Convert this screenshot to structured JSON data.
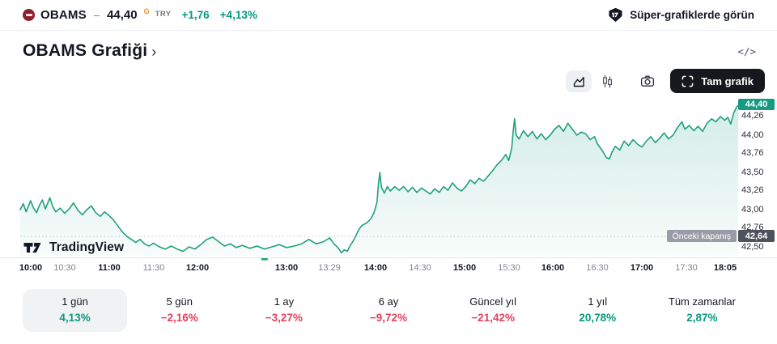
{
  "header": {
    "symbol": "OBAMS",
    "separator": "–",
    "price": "44,40",
    "market_flag": "G",
    "currency": "TRY",
    "change_abs": "+1,76",
    "change_pct": "+4,13%",
    "cta": "Süper-grafiklerde görün"
  },
  "title": {
    "text": "OBAMS Grafiği",
    "chevron": "›"
  },
  "icons": {
    "embed": "</>"
  },
  "toolbar": {
    "fullscreen_label": "Tam grafik"
  },
  "attribution": {
    "brand": "TradingView"
  },
  "colors": {
    "up": "#089981",
    "down": "#e5415d",
    "line": "#1fa07e",
    "fill_top": "rgba(31,160,126,0.20)",
    "fill_bottom": "rgba(31,160,126,0.03)",
    "last_badge_bg": "#179b80",
    "accent_orange": "#f28c1e"
  },
  "chart_data": {
    "type": "area",
    "title": "OBAMS Grafiği",
    "xlabel": "",
    "ylabel": "TRY",
    "x_range": [
      "10:00",
      "18:05"
    ],
    "ylim": [
      42.38,
      44.5
    ],
    "grid": false,
    "y_ticks": [
      "44,26",
      "44,00",
      "43,76",
      "43,50",
      "43,26",
      "43,00",
      "42,76",
      "42,50"
    ],
    "x_ticks": [
      {
        "label": "10:00",
        "strong": true
      },
      {
        "label": "10:30",
        "strong": false
      },
      {
        "label": "11:00",
        "strong": true
      },
      {
        "label": "11:30",
        "strong": false
      },
      {
        "label": "12:00",
        "strong": true
      },
      {
        "label": "13:00",
        "strong": true
      },
      {
        "label": "13:29",
        "strong": false
      },
      {
        "label": "14:00",
        "strong": true
      },
      {
        "label": "14:30",
        "strong": false
      },
      {
        "label": "15:00",
        "strong": true
      },
      {
        "label": "15:30",
        "strong": false
      },
      {
        "label": "16:00",
        "strong": true
      },
      {
        "label": "16:30",
        "strong": false
      },
      {
        "label": "17:00",
        "strong": true
      },
      {
        "label": "17:30",
        "strong": false
      },
      {
        "label": "18:05",
        "strong": true
      }
    ],
    "last_price": {
      "label": "44,40",
      "value": 44.4
    },
    "prev_close": {
      "label": "Önceki kapanış",
      "value_label": "42,64",
      "value": 42.64
    },
    "session_break": "12:45",
    "series": [
      {
        "name": "OBAMS",
        "points": [
          [
            "10:00",
            43.0
          ],
          [
            "10:02",
            43.08
          ],
          [
            "10:04",
            42.97
          ],
          [
            "10:07",
            43.12
          ],
          [
            "10:09",
            43.02
          ],
          [
            "10:11",
            42.96
          ],
          [
            "10:13",
            43.06
          ],
          [
            "10:15",
            43.13
          ],
          [
            "10:17",
            43.01
          ],
          [
            "10:20",
            43.16
          ],
          [
            "10:22",
            43.04
          ],
          [
            "10:24",
            42.97
          ],
          [
            "10:27",
            43.02
          ],
          [
            "10:30",
            42.95
          ],
          [
            "10:33",
            43.01
          ],
          [
            "10:36",
            43.09
          ],
          [
            "10:39",
            42.99
          ],
          [
            "10:42",
            42.93
          ],
          [
            "10:45",
            43.0
          ],
          [
            "10:48",
            43.05
          ],
          [
            "10:51",
            42.96
          ],
          [
            "10:54",
            42.91
          ],
          [
            "10:57",
            42.97
          ],
          [
            "11:00",
            42.92
          ],
          [
            "11:03",
            42.86
          ],
          [
            "11:06",
            42.78
          ],
          [
            "11:09",
            42.7
          ],
          [
            "11:12",
            42.64
          ],
          [
            "11:15",
            42.6
          ],
          [
            "11:18",
            42.56
          ],
          [
            "11:21",
            42.6
          ],
          [
            "11:24",
            42.54
          ],
          [
            "11:27",
            42.51
          ],
          [
            "11:30",
            42.55
          ],
          [
            "11:34",
            42.5
          ],
          [
            "11:38",
            42.47
          ],
          [
            "11:42",
            42.51
          ],
          [
            "11:46",
            42.47
          ],
          [
            "11:50",
            42.44
          ],
          [
            "11:54",
            42.5
          ],
          [
            "11:58",
            42.47
          ],
          [
            "12:02",
            42.53
          ],
          [
            "12:06",
            42.6
          ],
          [
            "12:10",
            42.63
          ],
          [
            "12:14",
            42.57
          ],
          [
            "12:18",
            42.51
          ],
          [
            "12:22",
            42.54
          ],
          [
            "12:26",
            42.49
          ],
          [
            "12:30",
            42.52
          ],
          [
            "12:35",
            42.48
          ],
          [
            "12:40",
            42.51
          ],
          [
            "12:45",
            42.47
          ],
          [
            "12:50",
            42.5
          ],
          [
            "12:55",
            42.53
          ],
          [
            "13:00",
            42.49
          ],
          [
            "13:05",
            42.51
          ],
          [
            "13:10",
            42.54
          ],
          [
            "13:15",
            42.6
          ],
          [
            "13:20",
            42.54
          ],
          [
            "13:25",
            42.57
          ],
          [
            "13:29",
            42.62
          ],
          [
            "13:32",
            42.54
          ],
          [
            "13:35",
            42.48
          ],
          [
            "13:37",
            42.42
          ],
          [
            "13:39",
            42.46
          ],
          [
            "13:41",
            42.44
          ],
          [
            "13:43",
            42.52
          ],
          [
            "13:45",
            42.58
          ],
          [
            "13:47",
            42.66
          ],
          [
            "13:49",
            42.74
          ],
          [
            "13:51",
            42.79
          ],
          [
            "13:54",
            42.82
          ],
          [
            "13:57",
            42.88
          ],
          [
            "13:59",
            42.96
          ],
          [
            "14:01",
            43.1
          ],
          [
            "14:02",
            43.35
          ],
          [
            "14:03",
            43.5
          ],
          [
            "14:04",
            43.3
          ],
          [
            "14:06",
            43.22
          ],
          [
            "14:08",
            43.31
          ],
          [
            "14:10",
            43.25
          ],
          [
            "14:13",
            43.31
          ],
          [
            "14:16",
            43.26
          ],
          [
            "14:19",
            43.31
          ],
          [
            "14:22",
            43.24
          ],
          [
            "14:25",
            43.3
          ],
          [
            "14:28",
            43.23
          ],
          [
            "14:31",
            43.29
          ],
          [
            "14:34",
            43.25
          ],
          [
            "14:37",
            43.21
          ],
          [
            "14:40",
            43.28
          ],
          [
            "14:43",
            43.23
          ],
          [
            "14:46",
            43.31
          ],
          [
            "14:49",
            43.26
          ],
          [
            "14:52",
            43.36
          ],
          [
            "14:55",
            43.29
          ],
          [
            "14:58",
            43.25
          ],
          [
            "15:01",
            43.31
          ],
          [
            "15:04",
            43.4
          ],
          [
            "15:07",
            43.35
          ],
          [
            "15:10",
            43.42
          ],
          [
            "15:13",
            43.38
          ],
          [
            "15:16",
            43.45
          ],
          [
            "15:19",
            43.52
          ],
          [
            "15:22",
            43.6
          ],
          [
            "15:25",
            43.66
          ],
          [
            "15:28",
            43.74
          ],
          [
            "15:30",
            43.66
          ],
          [
            "15:32",
            43.82
          ],
          [
            "15:33",
            44.05
          ],
          [
            "15:34",
            44.22
          ],
          [
            "15:35",
            44.0
          ],
          [
            "15:37",
            43.95
          ],
          [
            "15:40",
            44.06
          ],
          [
            "15:43",
            43.98
          ],
          [
            "15:46",
            44.05
          ],
          [
            "15:49",
            43.95
          ],
          [
            "15:52",
            44.02
          ],
          [
            "15:55",
            43.94
          ],
          [
            "15:58",
            44.0
          ],
          [
            "16:01",
            44.08
          ],
          [
            "16:04",
            44.13
          ],
          [
            "16:07",
            44.05
          ],
          [
            "16:10",
            44.16
          ],
          [
            "16:13",
            44.08
          ],
          [
            "16:16",
            44.0
          ],
          [
            "16:19",
            44.04
          ],
          [
            "16:22",
            44.02
          ],
          [
            "16:25",
            43.94
          ],
          [
            "16:28",
            43.98
          ],
          [
            "16:30",
            43.88
          ],
          [
            "16:33",
            43.8
          ],
          [
            "16:36",
            43.7
          ],
          [
            "16:38",
            43.68
          ],
          [
            "16:40",
            43.78
          ],
          [
            "16:42",
            43.85
          ],
          [
            "16:45",
            43.8
          ],
          [
            "16:48",
            43.92
          ],
          [
            "16:51",
            43.86
          ],
          [
            "16:54",
            43.94
          ],
          [
            "16:57",
            43.88
          ],
          [
            "17:00",
            43.84
          ],
          [
            "17:03",
            43.92
          ],
          [
            "17:06",
            43.98
          ],
          [
            "17:09",
            43.9
          ],
          [
            "17:12",
            43.96
          ],
          [
            "17:15",
            44.03
          ],
          [
            "17:18",
            43.95
          ],
          [
            "17:21",
            44.0
          ],
          [
            "17:24",
            44.1
          ],
          [
            "17:27",
            44.18
          ],
          [
            "17:29",
            44.08
          ],
          [
            "17:32",
            44.13
          ],
          [
            "17:35",
            44.06
          ],
          [
            "17:38",
            44.12
          ],
          [
            "17:41",
            44.05
          ],
          [
            "17:44",
            44.16
          ],
          [
            "17:47",
            44.22
          ],
          [
            "17:50",
            44.18
          ],
          [
            "17:53",
            44.25
          ],
          [
            "17:56",
            44.2
          ],
          [
            "17:58",
            44.24
          ],
          [
            "18:00",
            44.15
          ],
          [
            "18:02",
            44.3
          ],
          [
            "18:04",
            44.38
          ],
          [
            "18:05",
            44.4
          ]
        ]
      }
    ]
  },
  "tabs": [
    {
      "label": "1 gün",
      "value": "4,13%",
      "dir": "up",
      "selected": true
    },
    {
      "label": "5 gün",
      "value": "−2,16%",
      "dir": "down",
      "selected": false
    },
    {
      "label": "1 ay",
      "value": "−3,27%",
      "dir": "down",
      "selected": false
    },
    {
      "label": "6 ay",
      "value": "−9,72%",
      "dir": "down",
      "selected": false
    },
    {
      "label": "Güncel yıl",
      "value": "−21,42%",
      "dir": "down",
      "selected": false
    },
    {
      "label": "1 yıl",
      "value": "20,78%",
      "dir": "up",
      "selected": false
    },
    {
      "label": "Tüm zamanlar",
      "value": "2,87%",
      "dir": "up",
      "selected": false
    }
  ]
}
